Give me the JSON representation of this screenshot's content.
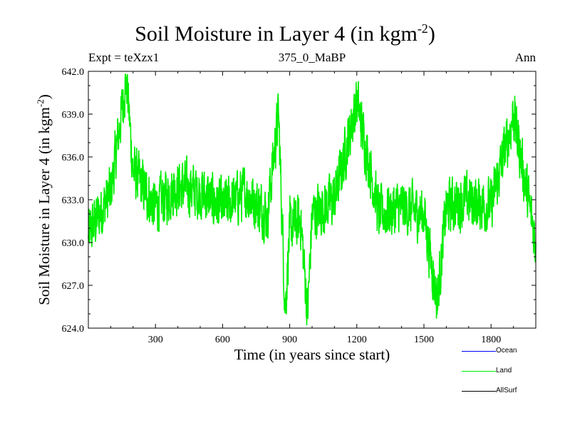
{
  "header": {
    "expt": "Expt = teXzx1",
    "run": "375_0_MaBP",
    "period": "Ann"
  },
  "chart_data": {
    "type": "line",
    "title": "Soil Moisture in Layer 4 (in kgm",
    "title_sup": "-2",
    "title_end": ")",
    "xlabel": "Time (in years since start)",
    "ylabel": "Soil Moisture in Layer 4 (in kgm",
    "ylabel_sup": "-2",
    "ylabel_end": ")",
    "xlim": [
      0,
      2000
    ],
    "ylim": [
      624.0,
      642.0
    ],
    "x_ticks": [
      300,
      600,
      900,
      1200,
      1500,
      1800
    ],
    "x_tick_labels": [
      "300",
      "600",
      "900",
      "1200",
      "1500",
      "1800"
    ],
    "y_ticks": [
      624.0,
      627.0,
      630.0,
      633.0,
      636.0,
      639.0,
      642.0
    ],
    "y_tick_labels": [
      "624.0",
      "627.0",
      "630.0",
      "633.0",
      "636.0",
      "639.0",
      "642.0"
    ],
    "legend_position": "bottom-right, outside plot",
    "series": [
      {
        "name": "Ocean",
        "color": "#0000ff",
        "values": []
      },
      {
        "name": "Land",
        "color": "#00ee00",
        "x": [
          0,
          100,
          170,
          200,
          300,
          400,
          500,
          600,
          700,
          800,
          850,
          880,
          900,
          950,
          980,
          1000,
          1100,
          1200,
          1300,
          1400,
          1500,
          1560,
          1600,
          1700,
          1800,
          1900,
          2000
        ],
        "values": [
          630.5,
          633.5,
          641.6,
          635.0,
          632.5,
          634.0,
          633.5,
          632.5,
          633.5,
          632.0,
          639.0,
          625.3,
          631.0,
          631.5,
          625.0,
          632.0,
          633.0,
          639.9,
          632.0,
          632.5,
          632.0,
          625.9,
          632.5,
          633.0,
          632.5,
          639.0,
          630.0
        ],
        "fluctuation_amplitude": 2.6
      },
      {
        "name": "AllSurf",
        "color": "#000000",
        "values": []
      }
    ]
  }
}
